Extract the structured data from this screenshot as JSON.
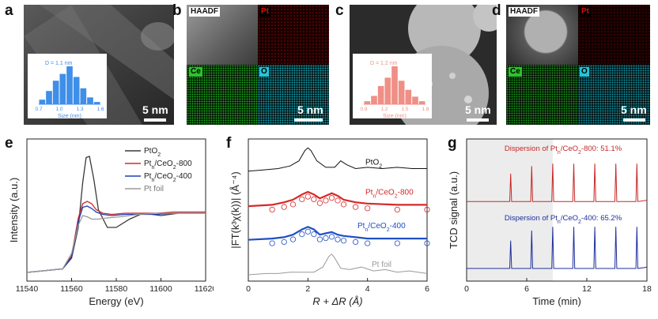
{
  "panels": {
    "a": {
      "label": "a",
      "d_text": "D = 1.1 nm",
      "xlabel": "Size (nm)",
      "ticks": [
        "0.7",
        "1.0",
        "1.3",
        "1.6"
      ],
      "scale": "5 nm",
      "hist": [
        0.12,
        0.35,
        0.62,
        0.8,
        1.0,
        0.72,
        0.42,
        0.18,
        0.06
      ]
    },
    "b": {
      "label": "b",
      "haadf": "HAADF",
      "pt": "Pt",
      "ce": "Ce",
      "o": "O",
      "scale": "5 nm"
    },
    "c": {
      "label": "c",
      "d_text": "D = 1.2 nm",
      "xlabel": "Size (nm)",
      "ticks": [
        "0.9",
        "1.2",
        "1.5",
        "1.8"
      ],
      "scale": "5 nm",
      "hist": [
        0.08,
        0.22,
        0.48,
        0.7,
        1.0,
        0.62,
        0.38,
        0.2,
        0.08
      ]
    },
    "d": {
      "label": "d",
      "haadf": "HAADF",
      "pt": "Pt",
      "ce": "Ce",
      "o": "O",
      "scale": "5 nm"
    },
    "e": {
      "label": "e"
    },
    "f": {
      "label": "f"
    },
    "g": {
      "label": "g"
    }
  },
  "chart_data": [
    {
      "type": "line",
      "panel": "e",
      "xlabel": "Energy (eV)",
      "ylabel": "Intensity (a.u.)",
      "xlim": [
        11540,
        11620
      ],
      "xticks": [
        "11540",
        "11560",
        "11580",
        "11600",
        "11620"
      ],
      "legend": [
        "PtO2",
        "Pt_n/CeO2-800",
        "Pt_n/CeO2-400",
        "Pt foil"
      ],
      "legend_display": {
        "s1": {
          "base": "PtO",
          "sub": "2",
          "rest": ""
        },
        "s2": {
          "base": "Pt",
          "sub": "n",
          "rest": "/CeO",
          "sub2": "2",
          "tail": "-800"
        },
        "s3": {
          "base": "Pt",
          "sub": "n",
          "rest": "/CeO",
          "sub2": "2",
          "tail": "-400"
        },
        "s4": {
          "base": "Pt foil"
        }
      },
      "colors": [
        "#3a3a3a",
        "#d62828",
        "#1f3fb4",
        "#9a9a9a"
      ],
      "series": [
        {
          "name": "PtO2",
          "x": [
            11540,
            11556,
            11560,
            11563,
            11565,
            11566.5,
            11568,
            11570,
            11572,
            11576,
            11580,
            11586,
            11592,
            11600,
            11608,
            11615,
            11620
          ],
          "y": [
            0.02,
            0.05,
            0.14,
            0.4,
            0.78,
            0.99,
            1.0,
            0.8,
            0.55,
            0.4,
            0.4,
            0.47,
            0.52,
            0.5,
            0.52,
            0.52,
            0.52
          ]
        },
        {
          "name": "Pt_n/CeO2-800",
          "x": [
            11540,
            11556,
            11560,
            11563,
            11565,
            11567,
            11569,
            11571,
            11574,
            11578,
            11584,
            11590,
            11598,
            11606,
            11614,
            11620
          ],
          "y": [
            0.02,
            0.05,
            0.16,
            0.48,
            0.6,
            0.62,
            0.6,
            0.55,
            0.52,
            0.51,
            0.52,
            0.52,
            0.52,
            0.53,
            0.53,
            0.53
          ]
        },
        {
          "name": "Pt_n/CeO2-400",
          "x": [
            11540,
            11556,
            11560,
            11563,
            11565,
            11567,
            11569,
            11571,
            11574,
            11578,
            11584,
            11590,
            11598,
            11606,
            11614,
            11620
          ],
          "y": [
            0.02,
            0.05,
            0.15,
            0.45,
            0.57,
            0.58,
            0.56,
            0.53,
            0.51,
            0.5,
            0.51,
            0.51,
            0.51,
            0.52,
            0.52,
            0.52
          ]
        },
        {
          "name": "Pt foil",
          "x": [
            11540,
            11556,
            11560,
            11563,
            11565,
            11567,
            11569,
            11572,
            11576,
            11582,
            11590,
            11598,
            11606,
            11614,
            11620
          ],
          "y": [
            0.02,
            0.05,
            0.18,
            0.42,
            0.5,
            0.49,
            0.47,
            0.47,
            0.48,
            0.49,
            0.51,
            0.52,
            0.52,
            0.52,
            0.52
          ]
        }
      ]
    },
    {
      "type": "line",
      "panel": "f",
      "xlabel": "R + ΔR (Å)",
      "ylabel": "|FT(k³χ(k))| (Å⁻⁴)",
      "xlim": [
        0,
        6
      ],
      "xticks": [
        "0",
        "2",
        "4",
        "6"
      ],
      "colors": [
        "#111111",
        "#d62828",
        "#1f4fc4",
        "#9a9a9a"
      ],
      "series": [
        {
          "name": "PtO2",
          "label_parts": {
            "base": "PtO",
            "sub": "2"
          },
          "offset": 0.8,
          "x": [
            0,
            0.5,
            1.0,
            1.4,
            1.7,
            1.9,
            2.0,
            2.1,
            2.3,
            2.6,
            2.9,
            3.1,
            3.3,
            3.6,
            4.0,
            4.5,
            5.0,
            5.5,
            6.0
          ],
          "y": [
            0.0,
            0.01,
            0.02,
            0.04,
            0.08,
            0.16,
            0.18,
            0.16,
            0.08,
            0.03,
            0.03,
            0.08,
            0.05,
            0.02,
            0.03,
            0.02,
            0.03,
            0.02,
            0.02
          ]
        },
        {
          "name": "Pt_n/CeO2-800",
          "label_parts": {
            "base": "Pt",
            "sub": "n",
            "rest": "/CeO",
            "sub2": "2",
            "tail": "-800"
          },
          "offset": 0.52,
          "x": [
            0,
            0.8,
            1.2,
            1.5,
            1.8,
            2.0,
            2.2,
            2.4,
            2.6,
            2.8,
            3.0,
            3.2,
            3.6,
            4.0,
            5.0,
            6.0
          ],
          "y": [
            0.01,
            0.02,
            0.04,
            0.06,
            0.1,
            0.12,
            0.1,
            0.07,
            0.09,
            0.11,
            0.09,
            0.06,
            0.04,
            0.03,
            0.02,
            0.02
          ]
        },
        {
          "name": "Pt_n/CeO2-400",
          "label_parts": {
            "base": "Pt",
            "sub": "n",
            "rest": "/CeO",
            "sub2": "2",
            "tail": "-400"
          },
          "offset": 0.26,
          "x": [
            0,
            0.8,
            1.2,
            1.5,
            1.8,
            2.0,
            2.2,
            2.4,
            2.6,
            2.8,
            3.0,
            3.2,
            3.6,
            4.0,
            5.0,
            6.0
          ],
          "y": [
            0.01,
            0.02,
            0.03,
            0.05,
            0.09,
            0.11,
            0.09,
            0.05,
            0.06,
            0.07,
            0.05,
            0.04,
            0.03,
            0.02,
            0.02,
            0.02
          ]
        },
        {
          "name": "Pt foil",
          "label_parts": {
            "base": "Pt foil"
          },
          "offset": 0.0,
          "x": [
            0,
            0.6,
            1.0,
            1.4,
            1.8,
            2.2,
            2.5,
            2.7,
            2.8,
            2.9,
            3.1,
            3.4,
            3.8,
            4.2,
            4.6,
            5.0,
            5.4,
            6.0
          ],
          "y": [
            0.0,
            0.01,
            0.01,
            0.02,
            0.02,
            0.02,
            0.06,
            0.14,
            0.16,
            0.13,
            0.05,
            0.04,
            0.06,
            0.03,
            0.04,
            0.02,
            0.03,
            0.01
          ]
        }
      ]
    },
    {
      "type": "line",
      "panel": "g",
      "xlabel": "Time (min)",
      "ylabel": "TCD signal (a.u.)",
      "xlim": [
        0,
        18
      ],
      "xticks": [
        "0",
        "6",
        "12",
        "18"
      ],
      "series": [
        {
          "name": "Pt_n/CeO2-800",
          "color": "#c62828",
          "baseline": 0.58,
          "peaks": [
            4.4,
            6.5,
            8.6,
            10.7,
            12.8,
            14.9,
            17.0
          ],
          "heights": [
            0.22,
            0.28,
            0.3,
            0.3,
            0.3,
            0.3,
            0.3
          ],
          "annotation": {
            "pre": "Dispersion of Pt",
            "sub": "n",
            "mid": "/CeO",
            "sub2": "2",
            "post": "-800: 51.1%"
          }
        },
        {
          "name": "Pt_n/CeO2-400",
          "color": "#1f2f9c",
          "baseline": 0.05,
          "peaks": [
            4.4,
            6.5,
            8.6,
            10.7,
            12.8,
            14.9,
            17.0
          ],
          "heights": [
            0.22,
            0.3,
            0.33,
            0.33,
            0.33,
            0.33,
            0.33
          ],
          "annotation": {
            "pre": "Dispersion of Pt",
            "sub": "n",
            "mid": "/CeO",
            "sub2": "2",
            "post": "-400: 65.2%"
          }
        }
      ],
      "shaded_until": 8.6
    }
  ]
}
